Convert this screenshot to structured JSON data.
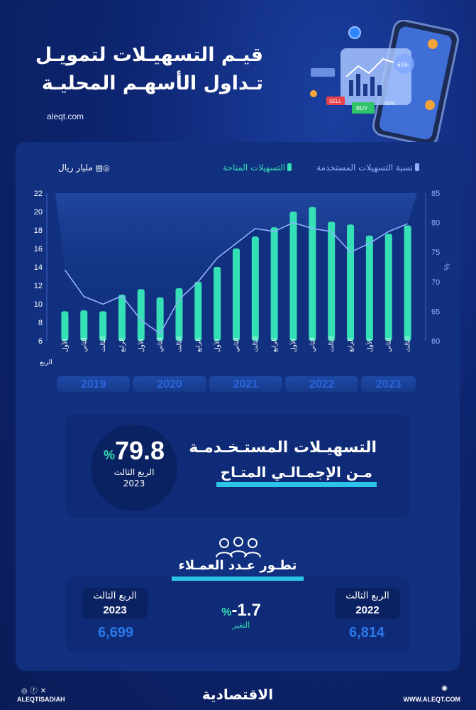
{
  "header": {
    "title_line1": "قيـم التسهيـلات لتمويـل",
    "title_line2": "تـداول الأسهـم المحليـة",
    "site": "aleqt.com"
  },
  "illustration": {
    "buy": "BUY",
    "sell": "SELL",
    "pct1": "65%",
    "pct2": "50%"
  },
  "legend": {
    "used_ratio": "نسبة التسهيلات المستخدمة",
    "available": "التسهيلات المتاحة",
    "unit": "مليار ريال"
  },
  "chart_data": {
    "type": "bar",
    "quarter_axis_label": "الربع",
    "categories": [
      "الأول",
      "الثاني",
      "الثالث",
      "الرابع",
      "الأول",
      "الثاني",
      "الثالث",
      "الرابع",
      "الأول",
      "الثاني",
      "الثالث",
      "الرابع",
      "الأول",
      "الثاني",
      "الثالث",
      "الرابع",
      "الأول",
      "الثاني",
      "الثالث"
    ],
    "years": [
      "2019",
      "2020",
      "2021",
      "2022",
      "2023"
    ],
    "series": [
      {
        "name": "التسهيلات المتاحة",
        "type": "bar",
        "axis": "left",
        "color": "#35e0b6",
        "values": [
          9.2,
          9.3,
          9.2,
          11.0,
          11.6,
          10.7,
          11.7,
          12.4,
          14.0,
          16.0,
          17.3,
          18.3,
          20.0,
          20.5,
          18.9,
          18.6,
          17.4,
          17.6,
          18.5
        ]
      },
      {
        "name": "نسبة التسهيلات المستخدمة",
        "type": "line",
        "axis": "right",
        "color": "#8fb2ff",
        "values": [
          72.0,
          67.5,
          66.2,
          67.6,
          63.5,
          61.2,
          67.0,
          70.0,
          74.0,
          76.5,
          79.0,
          78.5,
          80.0,
          79.0,
          78.5,
          75.0,
          76.5,
          78.5,
          79.8
        ]
      }
    ],
    "y_left": {
      "min": 6,
      "max": 22,
      "ticks": [
        6,
        8,
        10,
        12,
        14,
        16,
        18,
        20,
        22
      ]
    },
    "y_right": {
      "min": 60,
      "max": 85,
      "ticks": [
        60,
        65,
        70,
        75,
        80,
        85
      ],
      "label": "%"
    }
  },
  "highlight": {
    "value": "79.8",
    "unit": "%",
    "quarter": "الربع الثالث",
    "year": "2023",
    "line1": "التسهيـلات المستـخـدمـة",
    "line2": "مـن الإجمـالـي المتـاح"
  },
  "clients": {
    "title": "تطـور عـدد العمـلاء",
    "left": {
      "quarter": "الربع الثالث",
      "year": "2023",
      "value": "6,699"
    },
    "right": {
      "quarter": "الربع الثالث",
      "year": "2022",
      "value": "6,814"
    },
    "change_value": "-1.7",
    "change_unit": "%",
    "change_label": "التغير"
  },
  "footer": {
    "handle": "ALEQTISADIAH",
    "brand": "الاقتصادية",
    "website": "WWW.ALEQT.COM"
  }
}
